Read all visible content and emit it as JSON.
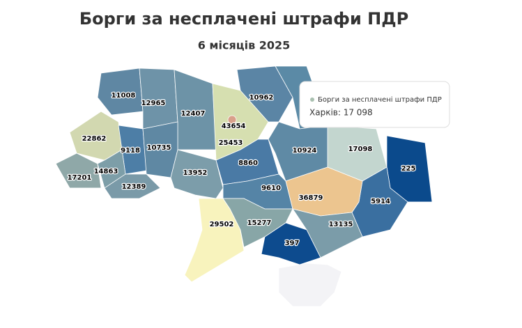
{
  "chart_data": {
    "type": "map",
    "title": "Борги за несплачені штрафи ПДР",
    "subtitle": "6 місяців 2025",
    "regions": [
      {
        "value": 11008,
        "color": "#5f87a3"
      },
      {
        "value": 12965,
        "color": "#6e93a8"
      },
      {
        "value": 12407,
        "color": "#6d93a7"
      },
      {
        "value": 25453,
        "color": "#d6dfb0"
      },
      {
        "value": 43654,
        "color": "#d9a08a"
      },
      {
        "value": 10962,
        "color": "#5b85a5"
      },
      {
        "value": 17098,
        "color": "#c3d6cf"
      },
      {
        "value": 10924,
        "color": "#5f8aa5"
      },
      {
        "value": 225,
        "color": "#0b4a8c"
      },
      {
        "value": 5914,
        "color": "#3a6fa0"
      },
      {
        "value": 22862,
        "color": "#d2d8b0"
      },
      {
        "value": 9118,
        "color": "#4d7ea6"
      },
      {
        "value": 10735,
        "color": "#5f88a3"
      },
      {
        "value": 17201,
        "color": "#8fa8a8"
      },
      {
        "value": 14863,
        "color": "#7d9ea8"
      },
      {
        "value": 12389,
        "color": "#7a9aa8"
      },
      {
        "value": 13952,
        "color": "#7c9daa"
      },
      {
        "value": 8860,
        "color": "#4a7aa5"
      },
      {
        "value": 9610,
        "color": "#5584a6"
      },
      {
        "value": 36879,
        "color": "#ecc58f"
      },
      {
        "value": 29502,
        "color": "#f8f3bd"
      },
      {
        "value": 15277,
        "color": "#88a6a7"
      },
      {
        "value": 13135,
        "color": "#7b9ca9"
      },
      {
        "value": 397,
        "color": "#0d4b8e"
      }
    ],
    "tooltip": {
      "series": "Борги за несплачені штрафи ПДР",
      "text": "Харків: 17 098",
      "color": "#a9c0b0"
    }
  }
}
